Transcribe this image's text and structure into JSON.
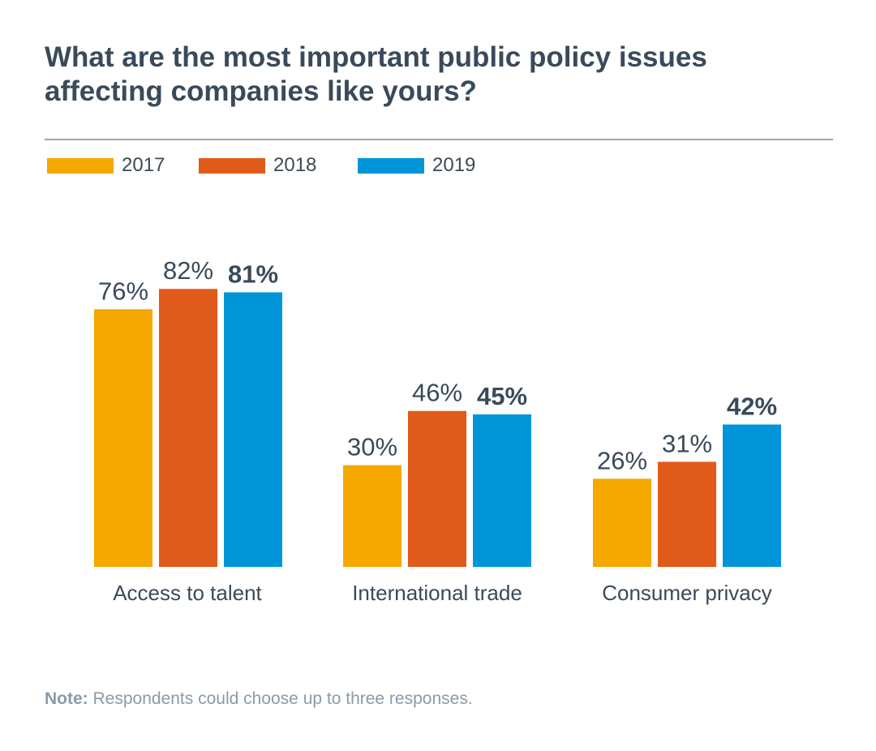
{
  "title_line1": "What are the most important public policy issues",
  "title_line2": "affecting companies like yours?",
  "note_label": "Note:",
  "note_text": "Respondents could choose up to three responses.",
  "chart_data": {
    "type": "bar",
    "categories": [
      "Access to talent",
      "International trade",
      "Consumer privacy"
    ],
    "series": [
      {
        "name": "2017",
        "values": [
          76,
          30,
          26
        ],
        "color": "#f5a800",
        "label_bold": false
      },
      {
        "name": "2018",
        "values": [
          82,
          46,
          31
        ],
        "color": "#e05a1a",
        "label_bold": false
      },
      {
        "name": "2019",
        "values": [
          81,
          45,
          42
        ],
        "color": "#0095d9",
        "label_bold": true
      }
    ],
    "value_suffix": "%",
    "ylim": [
      0,
      100
    ],
    "grid": false,
    "legend_position": "top-left"
  }
}
